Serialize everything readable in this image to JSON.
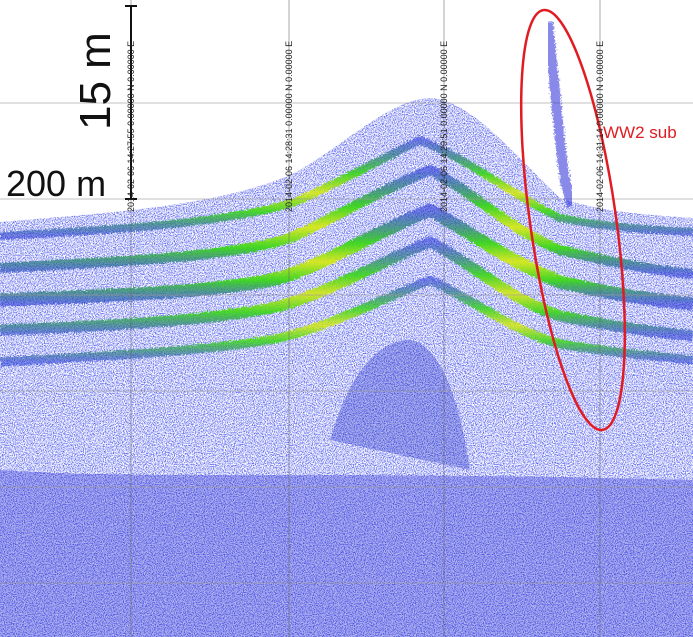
{
  "scale": {
    "vertical_label": "15 m",
    "horizontal_label": "200 m"
  },
  "timestamps": [
    "2014-02-06 14:27:55 0.00000 N 0.00000 E",
    "2014-02-06 14:28:31 0.00000 N 0.00000 E",
    "2014-02-06 14:29:51 0.00000 N 0.00000 E",
    "2014-02-06 14:31:14 0.00000 N 0.00000 E"
  ],
  "annotation": {
    "target_label": "WW2 sub",
    "ellipse_color": "#e11b22"
  },
  "colors": {
    "background": "#ffffff",
    "noise": "#2a2ad8",
    "layer_green": "#39d61a",
    "layer_yellow": "#d8e81a",
    "layer_red": "#e05a1a"
  }
}
